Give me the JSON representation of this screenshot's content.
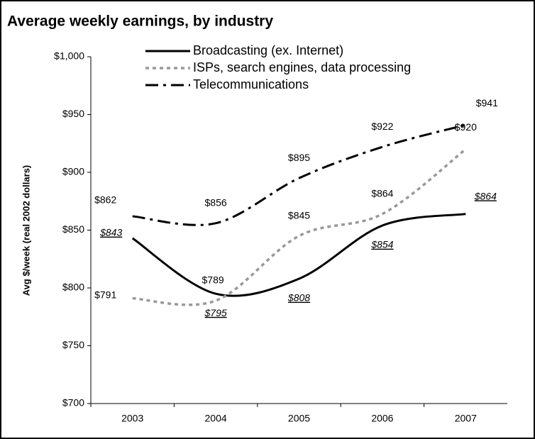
{
  "chart_data": {
    "type": "line",
    "title": "Average weekly earnings, by industry",
    "y_label": "Avg $/week (real 2002 dollars)",
    "categories": [
      "2003",
      "2004",
      "2005",
      "2006",
      "2007"
    ],
    "ylim": [
      700,
      1000
    ],
    "yticks": [
      {
        "value": 700,
        "label": "$700"
      },
      {
        "value": 750,
        "label": "$750"
      },
      {
        "value": 800,
        "label": "$800"
      },
      {
        "value": 850,
        "label": "$850"
      },
      {
        "value": 900,
        "label": "$900"
      },
      {
        "value": 950,
        "label": "$950"
      },
      {
        "value": 1000,
        "label": "$1,000"
      }
    ],
    "series": [
      {
        "name": "Broadcasting (ex. Internet)",
        "color": "#000000",
        "values": [
          843,
          795,
          808,
          854,
          864
        ],
        "value_labels": [
          "$843",
          "$795",
          "$808",
          "$854",
          "$864"
        ]
      },
      {
        "name": "ISPs, search engines, data processing",
        "color": "#999999",
        "values": [
          791,
          789,
          845,
          864,
          920
        ],
        "value_labels": [
          "$791",
          "$789",
          "$845",
          "$864",
          "$920"
        ]
      },
      {
        "name": "Telecommunications",
        "color": "#000000",
        "values": [
          862,
          856,
          895,
          922,
          941
        ],
        "value_labels": [
          "$862",
          "$856",
          "$895",
          "$922",
          "$941"
        ]
      }
    ]
  }
}
